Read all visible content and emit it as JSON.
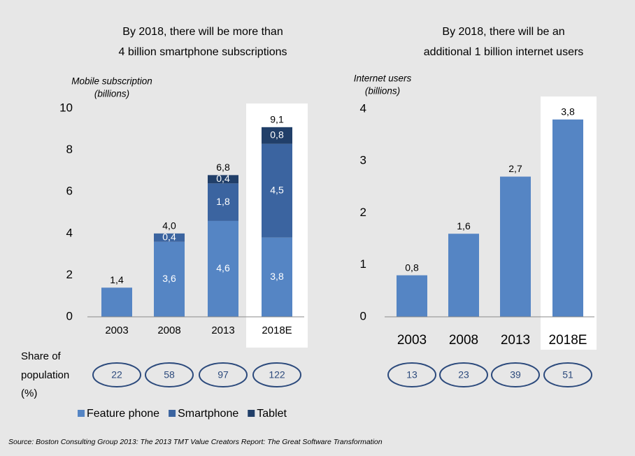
{
  "chart_data": [
    {
      "type": "stacked_bar",
      "title": [
        "By 2018, there will be more than",
        "4 billion smartphone subscriptions"
      ],
      "ylabel": [
        "Mobile subscription",
        "(billions)"
      ],
      "categories": [
        "2003",
        "2008",
        "2013",
        "2018E"
      ],
      "series": [
        {
          "name": "Feature phone",
          "color": "#5585c4",
          "values": [
            1.4,
            3.6,
            4.6,
            3.8
          ],
          "value_labels": [
            null,
            "3,6",
            "4,6",
            "3,8"
          ]
        },
        {
          "name": "Smartphone",
          "color": "#3b64a0",
          "values": [
            null,
            0.4,
            1.8,
            4.5
          ],
          "value_labels": [
            null,
            "0,4",
            "1,8",
            "4,5"
          ]
        },
        {
          "name": "Tablet",
          "color": "#213f69",
          "values": [
            null,
            null,
            0.4,
            0.8
          ],
          "value_labels": [
            null,
            null,
            "0,4",
            "0,8"
          ]
        }
      ],
      "totals": [
        1.4,
        4.0,
        6.8,
        9.1
      ],
      "total_labels": [
        "1,4",
        "4,0",
        "6,8",
        "9,1"
      ],
      "ylim": [
        0,
        10
      ],
      "yticks": [
        0,
        2,
        4,
        6,
        8,
        10
      ],
      "share_of_population": [
        22,
        58,
        97,
        122
      ]
    },
    {
      "type": "bar",
      "title": [
        "By 2018, there will be an",
        "additional 1 billion internet users"
      ],
      "ylabel": [
        "Internet users",
        "(billions)"
      ],
      "categories": [
        "2003",
        "2008",
        "2013",
        "2018E"
      ],
      "series": [
        {
          "color": "#5585c4",
          "values": [
            0.8,
            1.6,
            2.7,
            3.8
          ],
          "value_labels": [
            "0,8",
            "1,6",
            "2,7",
            "3,8"
          ]
        }
      ],
      "ylim": [
        0,
        4
      ],
      "yticks": [
        0,
        1,
        2,
        3,
        4
      ],
      "share_of_population": [
        13,
        23,
        39,
        51
      ]
    }
  ],
  "share_label": [
    "Share of",
    "population",
    "(%)"
  ],
  "source": "Source: Boston Consulting Group 2013: The 2013 TMT Value Creators Report: The Great Software Transformation"
}
